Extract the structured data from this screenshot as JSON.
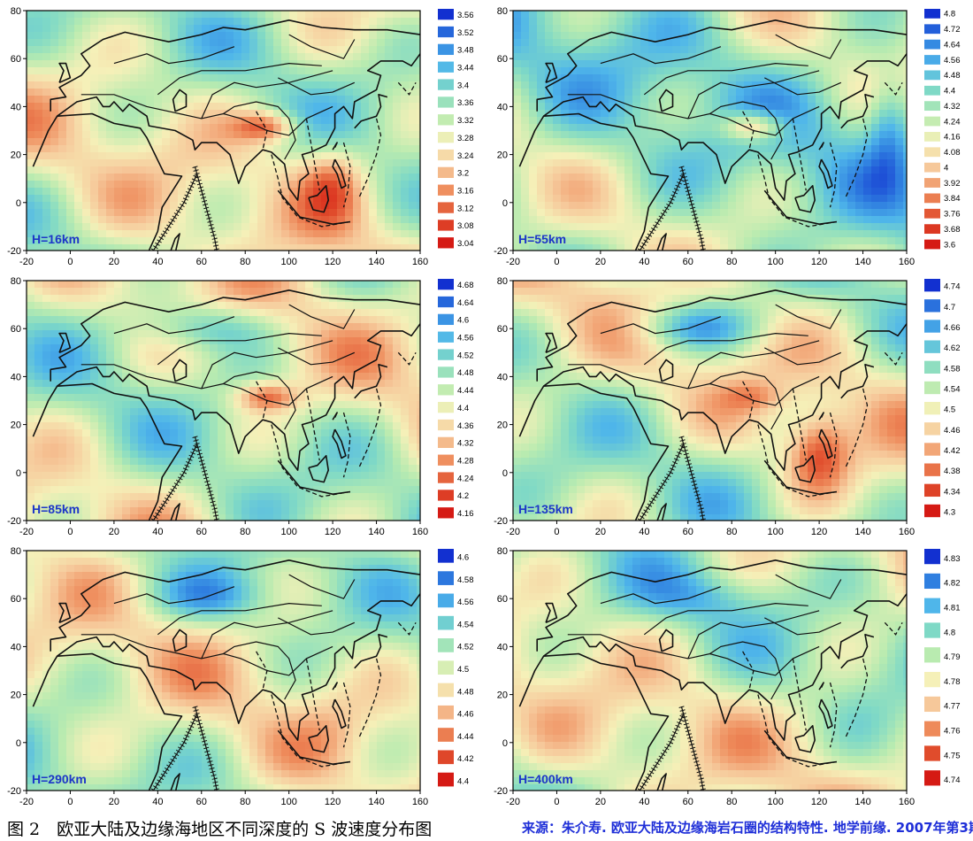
{
  "axes": {
    "x_ticks": [
      "-20",
      "0",
      "20",
      "40",
      "60",
      "80",
      "100",
      "120",
      "140",
      "160"
    ],
    "y_ticks": [
      "80",
      "60",
      "40",
      "20",
      "0",
      "-20"
    ]
  },
  "panels": [
    {
      "depth_label": "H=16km",
      "colorbar": [
        "3.56",
        "3.52",
        "3.48",
        "3.44",
        "3.4",
        "3.36",
        "3.32",
        "3.28",
        "3.24",
        "3.2",
        "3.16",
        "3.12",
        "3.08",
        "3.04"
      ]
    },
    {
      "depth_label": "H=55km",
      "colorbar": [
        "4.8",
        "4.72",
        "4.64",
        "4.56",
        "4.48",
        "4.4",
        "4.32",
        "4.24",
        "4.16",
        "4.08",
        "4",
        "3.92",
        "3.84",
        "3.76",
        "3.68",
        "3.6"
      ]
    },
    {
      "depth_label": "H=85km",
      "colorbar": [
        "4.68",
        "4.64",
        "4.6",
        "4.56",
        "4.52",
        "4.48",
        "4.44",
        "4.4",
        "4.36",
        "4.32",
        "4.28",
        "4.24",
        "4.2",
        "4.16"
      ]
    },
    {
      "depth_label": "H=135km",
      "colorbar": [
        "4.74",
        "4.7",
        "4.66",
        "4.62",
        "4.58",
        "4.54",
        "4.5",
        "4.46",
        "4.42",
        "4.38",
        "4.34",
        "4.3"
      ]
    },
    {
      "depth_label": "H=290km",
      "colorbar": [
        "4.6",
        "4.58",
        "4.56",
        "4.54",
        "4.52",
        "4.5",
        "4.48",
        "4.46",
        "4.44",
        "4.42",
        "4.4"
      ]
    },
    {
      "depth_label": "H=400km",
      "colorbar": [
        "4.83",
        "4.82",
        "4.81",
        "4.8",
        "4.79",
        "4.78",
        "4.77",
        "4.76",
        "4.75",
        "4.74"
      ]
    }
  ],
  "caption": {
    "left": "图 2　欧亚大陆及边缘海地区不同深度的 S 波速度分布图",
    "right": "来源：朱介寿. 欧亚大陆及边缘海岩石圈的结构特性. 地学前缘. 2007年第3期"
  },
  "colors": {
    "label_blue": "#1c36c8",
    "caption_blue": "#1f2fd8",
    "fast": "#1238d8",
    "slow": "#d81a10"
  }
}
